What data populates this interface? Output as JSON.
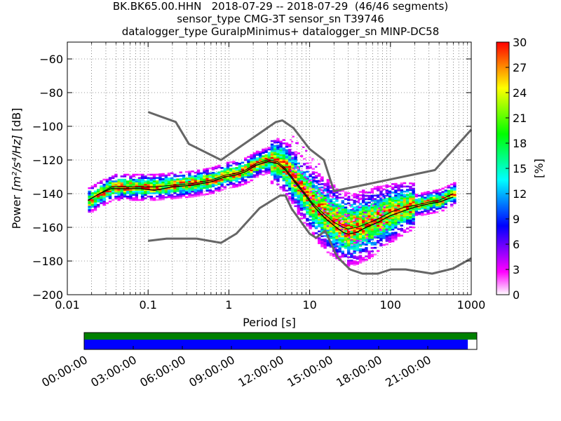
{
  "chart_data": {
    "type": "heatmap",
    "title_lines": [
      "BK.BK65.00.HHN   2018-07-29 -- 2018-07-29  (46/46 segments)",
      "sensor_type CMG-3T sensor_sn T39746",
      "datalogger_type GuralpMinimus+ datalogger_sn MINP-DC58"
    ],
    "xlabel": "Period [s]",
    "ylabel_parts": [
      "Power ",
      "[m²/s⁴/Hz]",
      " [dB]"
    ],
    "xscale": "log",
    "xlim": [
      0.01,
      1000
    ],
    "ylim": [
      -200,
      -50
    ],
    "xticks": [
      0.01,
      0.1,
      1,
      10,
      100,
      1000
    ],
    "xtick_labels": [
      "0.01",
      "0.1",
      "1",
      "10",
      "100",
      "1000"
    ],
    "yticks": [
      -200,
      -180,
      -160,
      -140,
      -120,
      -100,
      -80,
      -60
    ],
    "ytick_labels": [
      "−200",
      "−180",
      "−160",
      "−140",
      "−120",
      "−100",
      "−80",
      "−60"
    ],
    "grid": true,
    "colorbar": {
      "label": "[%]",
      "ticks": [
        0,
        3,
        6,
        9,
        12,
        15,
        18,
        21,
        24,
        27,
        30
      ],
      "tick_labels": [
        "0",
        "3",
        "6",
        "9",
        "12",
        "15",
        "18",
        "21",
        "24",
        "27",
        "30"
      ],
      "range": [
        0,
        30
      ],
      "colors": [
        "#ffffff",
        "#ff00ff",
        "#8000ff",
        "#0000ff",
        "#0080ff",
        "#00ffff",
        "#00ff80",
        "#00ff00",
        "#80ff00",
        "#ffff00",
        "#ff8000",
        "#ff0000"
      ]
    },
    "noise_model_high": [
      [
        0.1,
        -91.5
      ],
      [
        0.22,
        -97.4
      ],
      [
        0.32,
        -110.5
      ],
      [
        0.8,
        -120
      ],
      [
        3.8,
        -97.5
      ],
      [
        4.6,
        -96.5
      ],
      [
        6.3,
        -101
      ],
      [
        10,
        -113.5
      ],
      [
        15,
        -120
      ],
      [
        20,
        -138.5
      ],
      [
        354.8,
        -126
      ],
      [
        10000,
        -48.5
      ]
    ],
    "noise_model_low": [
      [
        0.1,
        -168
      ],
      [
        0.17,
        -166.7
      ],
      [
        0.4,
        -166.7
      ],
      [
        0.8,
        -169.2
      ],
      [
        1.24,
        -163.7
      ],
      [
        2.4,
        -148.6
      ],
      [
        4.3,
        -141.1
      ],
      [
        5,
        -141.1
      ],
      [
        6,
        -149
      ],
      [
        10,
        -163.8
      ],
      [
        12,
        -166.2
      ],
      [
        15.6,
        -162.1
      ],
      [
        21.9,
        -177.5
      ],
      [
        31.6,
        -185
      ],
      [
        45,
        -187.5
      ],
      [
        70,
        -187.5
      ],
      [
        101,
        -185
      ],
      [
        154,
        -185
      ],
      [
        328,
        -187.5
      ],
      [
        600,
        -184.4
      ],
      [
        10000,
        -151.5
      ]
    ],
    "mean_psd": [
      [
        0.018,
        -144
      ],
      [
        0.025,
        -140
      ],
      [
        0.035,
        -137
      ],
      [
        0.05,
        -137
      ],
      [
        0.08,
        -137
      ],
      [
        0.12,
        -138
      ],
      [
        0.2,
        -136
      ],
      [
        0.35,
        -135
      ],
      [
        0.6,
        -133
      ],
      [
        0.9,
        -130
      ],
      [
        1.2,
        -129
      ],
      [
        1.6,
        -127
      ],
      [
        2.2,
        -123
      ],
      [
        3,
        -121
      ],
      [
        4,
        -122
      ],
      [
        5,
        -126
      ],
      [
        6.5,
        -133
      ],
      [
        8.5,
        -140
      ],
      [
        11,
        -147
      ],
      [
        15,
        -154
      ],
      [
        20,
        -159
      ],
      [
        26,
        -163
      ],
      [
        30,
        -164
      ],
      [
        38,
        -163
      ],
      [
        50,
        -160
      ],
      [
        70,
        -157
      ],
      [
        100,
        -153
      ],
      [
        150,
        -150
      ],
      [
        200,
        -148
      ],
      [
        300,
        -146
      ],
      [
        400,
        -145
      ],
      [
        600,
        -142
      ]
    ],
    "mode_psd": [
      [
        0.018,
        -144
      ],
      [
        0.025,
        -140
      ],
      [
        0.035,
        -136
      ],
      [
        0.05,
        -136
      ],
      [
        0.08,
        -136
      ],
      [
        0.12,
        -136
      ],
      [
        0.2,
        -135
      ],
      [
        0.35,
        -134
      ],
      [
        0.6,
        -132
      ],
      [
        0.9,
        -129
      ],
      [
        1.2,
        -128
      ],
      [
        1.6,
        -126
      ],
      [
        2.2,
        -122
      ],
      [
        3,
        -120
      ],
      [
        4,
        -121
      ],
      [
        5,
        -125
      ],
      [
        6.5,
        -132
      ],
      [
        8.5,
        -139
      ],
      [
        11,
        -146
      ],
      [
        15,
        -152
      ],
      [
        20,
        -157
      ],
      [
        26,
        -160
      ],
      [
        30,
        -161
      ],
      [
        38,
        -160
      ],
      [
        50,
        -158
      ],
      [
        70,
        -155
      ],
      [
        100,
        -151
      ],
      [
        150,
        -148
      ],
      [
        200,
        -147
      ],
      [
        300,
        -145
      ],
      [
        400,
        -144
      ],
      [
        600,
        -140
      ]
    ],
    "timeline": {
      "tick_labels": [
        "00:00:00",
        "03:00:00",
        "06:00:00",
        "09:00:00",
        "12:00:00",
        "15:00:00",
        "18:00:00",
        "21:00:00"
      ],
      "data_coverage": [
        0.0,
        0.977
      ],
      "gap_coverage": [
        0.0,
        1.0
      ]
    }
  }
}
